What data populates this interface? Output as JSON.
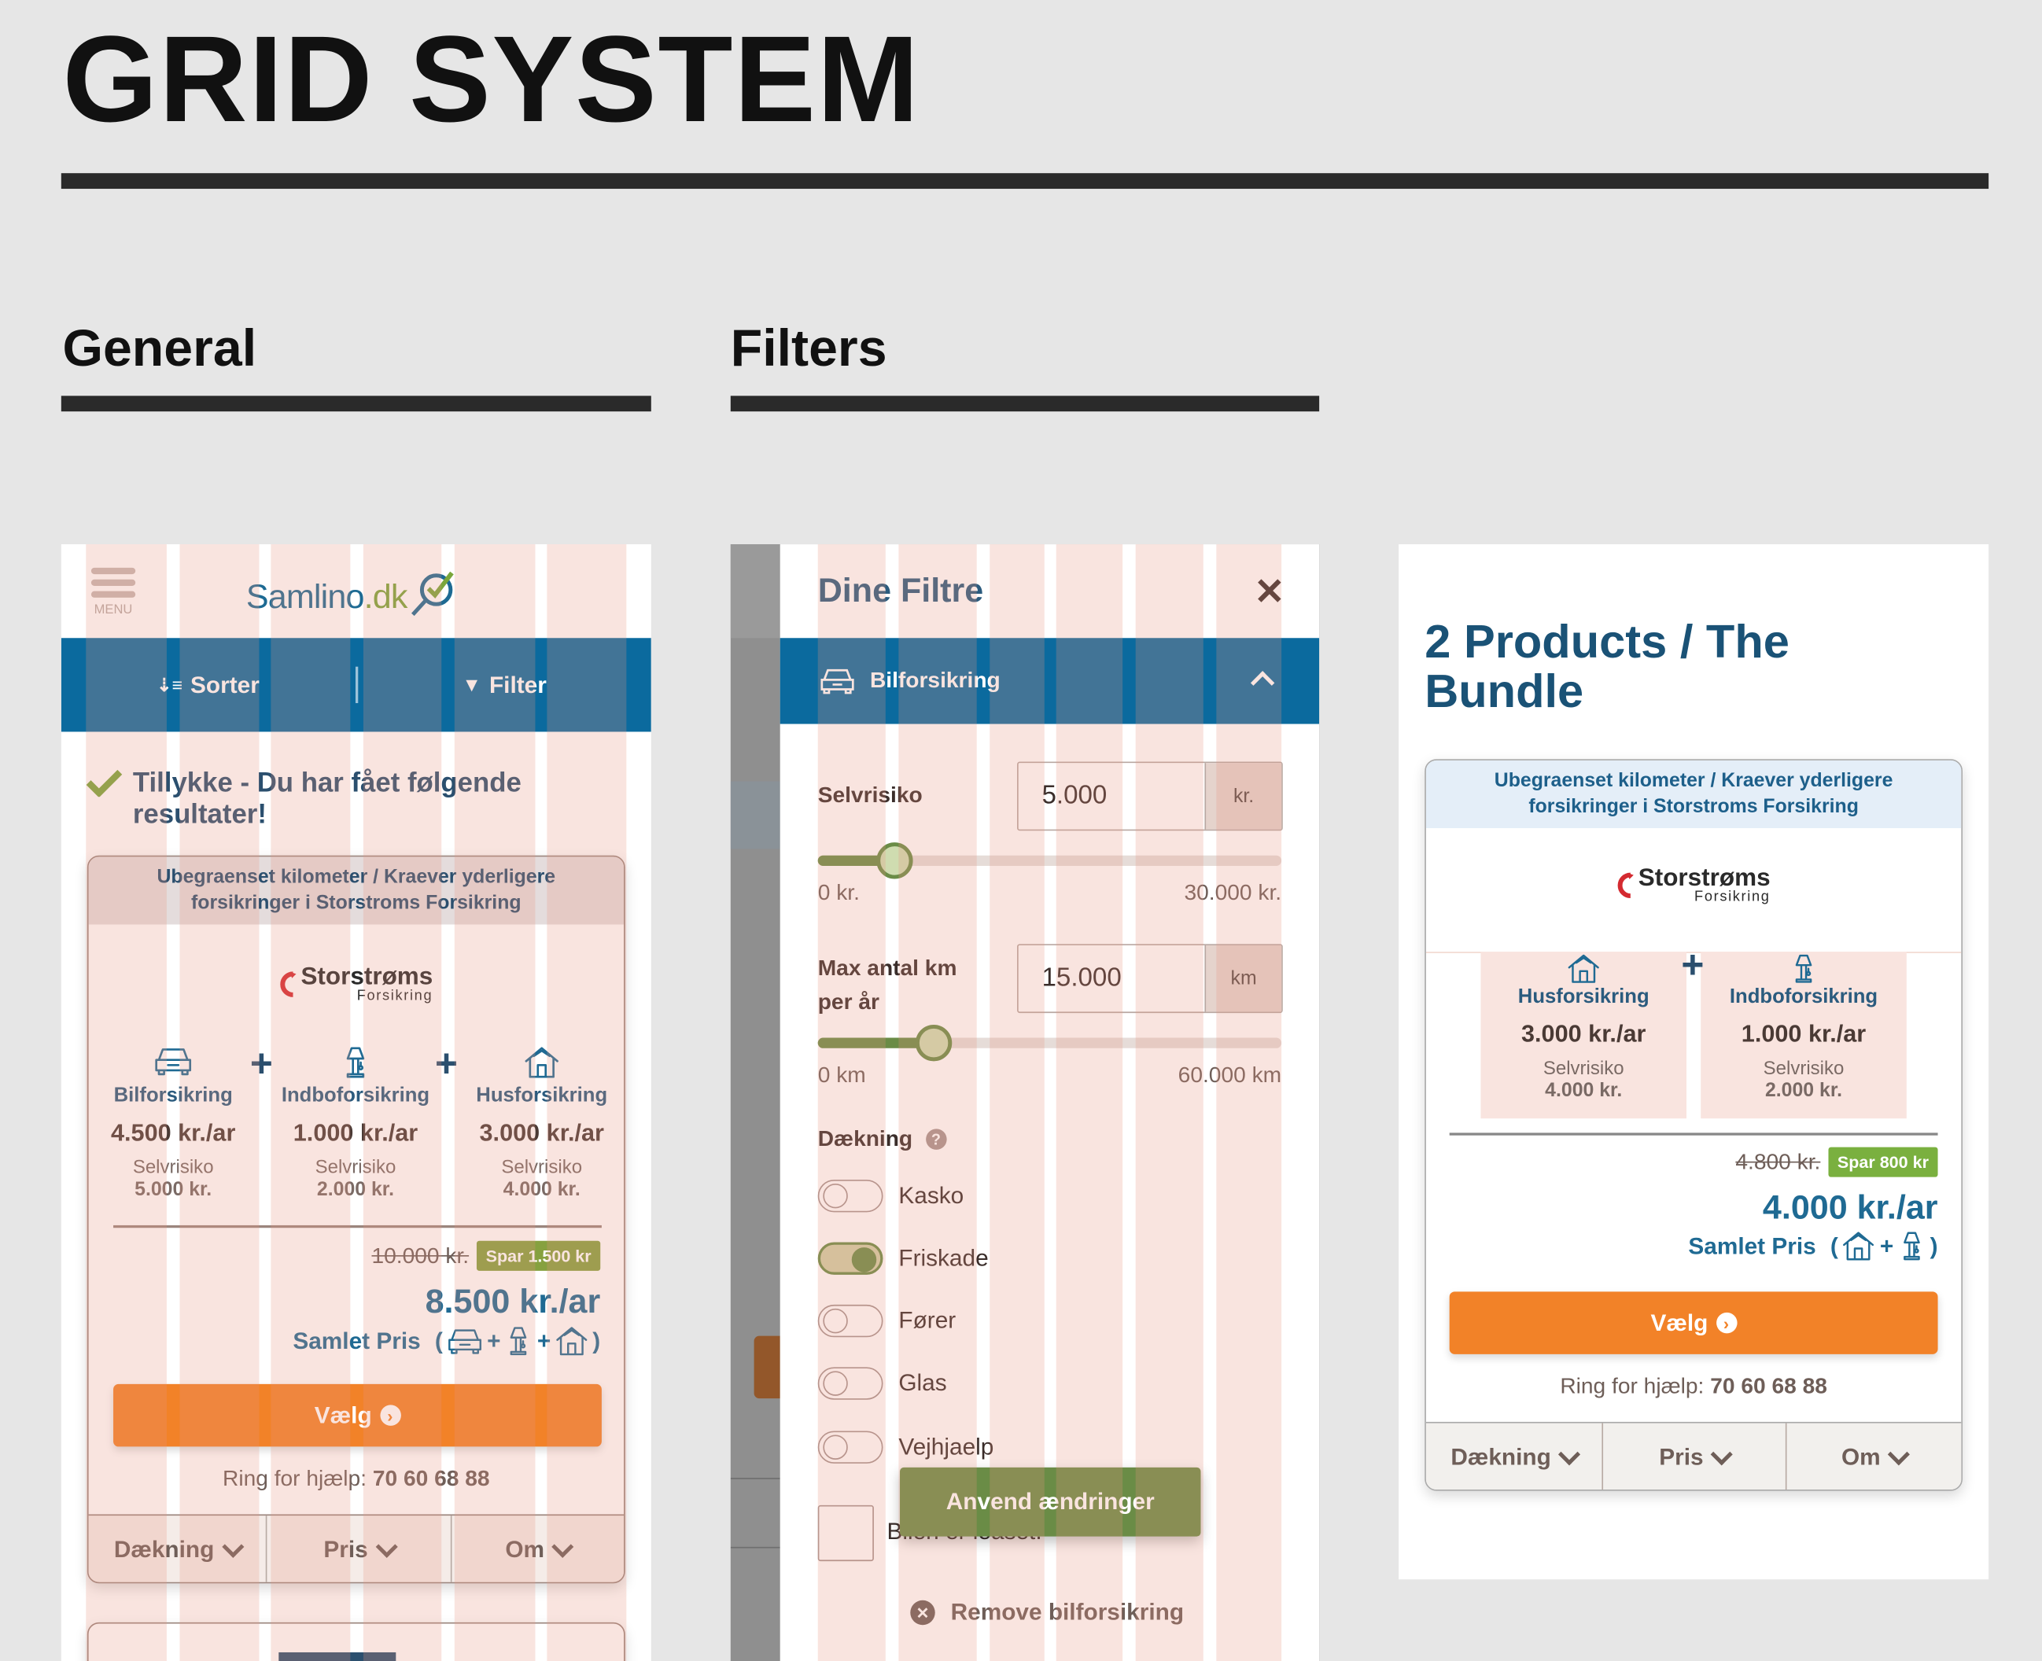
{
  "page": {
    "title": "GRID SYSTEM"
  },
  "sections": {
    "general": "General",
    "filters": "Filters"
  },
  "colors": {
    "brand_blue": "#0b6a9e",
    "accent_orange": "#f28228",
    "accent_green": "#6a8c46",
    "badge_green": "#86a13f",
    "grid_overlay": "#f9e4df"
  },
  "general": {
    "menu_label": "MENU",
    "logo": {
      "name": "Samlino",
      "tld": ".dk"
    },
    "toolbar": {
      "sort": "Sorter",
      "filter": "Filter"
    },
    "success_message": "Tillykke - Du har fået følgende resultater!",
    "card": {
      "header": "Ubegraenset kilometer / Kraever yderligere forsikringer i Storstroms Forsikring",
      "insurer": {
        "name": "Storstrøms",
        "sub": "Forsikring"
      },
      "products": [
        {
          "icon": "car-icon",
          "name": "Bilforsikring",
          "price": "4.500 kr./ar",
          "deductible_label": "Selvrisiko",
          "deductible": "5.000 kr."
        },
        {
          "icon": "lamp-icon",
          "name": "Indboforsikring",
          "price": "1.000 kr./ar",
          "deductible_label": "Selvrisiko",
          "deductible": "2.000 kr."
        },
        {
          "icon": "house-icon",
          "name": "Husforsikring",
          "price": "3.000 kr./ar",
          "deductible_label": "Selvrisiko",
          "deductible": "4.000 kr."
        }
      ],
      "old_price": "10.000 kr.",
      "savings": "Spar 1.500 kr",
      "total": "8.500 kr./ar",
      "total_label": "Samlet Pris",
      "choose": "Vælg",
      "help_label": "Ring for hjælp:",
      "help_phone": "70 60 68 88",
      "tabs": [
        "Dækning",
        "Pris",
        "Om"
      ]
    }
  },
  "filters": {
    "title": "Dine Filtre",
    "section": "Bilforsikring",
    "deductible": {
      "label": "Selvrisiko",
      "value": "5.000",
      "unit": "kr.",
      "min": "0 kr.",
      "max": "30.000 kr.",
      "slider_value": 5000,
      "slider_min": 0,
      "slider_max": 30000
    },
    "km": {
      "label": "Max antal km per år",
      "value": "15.000",
      "unit": "km",
      "min": "0 km",
      "max": "60.000 km",
      "slider_value": 15000,
      "slider_min": 0,
      "slider_max": 60000
    },
    "coverage_label": "Dækning",
    "coverage": [
      {
        "label": "Kasko",
        "on": false
      },
      {
        "label": "Friskade",
        "on": true
      },
      {
        "label": "Fører",
        "on": false
      },
      {
        "label": "Glas",
        "on": false
      },
      {
        "label": "Vejhjaelp",
        "on": false
      }
    ],
    "leased_label": "Bilen er leaset.",
    "apply": "Anvend ændringer",
    "remove": "Remove bilforsikring"
  },
  "bundle": {
    "heading": "2 Products / The Bundle",
    "card": {
      "header": "Ubegraenset kilometer / Kraever yderligere forsikringer i Storstroms Forsikring",
      "insurer": {
        "name": "Storstrøms",
        "sub": "Forsikring"
      },
      "products": [
        {
          "icon": "house-icon",
          "name": "Husforsikring",
          "price": "3.000 kr./ar",
          "deductible_label": "Selvrisiko",
          "deductible": "4.000 kr."
        },
        {
          "icon": "lamp-icon",
          "name": "Indboforsikring",
          "price": "1.000 kr./ar",
          "deductible_label": "Selvrisiko",
          "deductible": "2.000 kr."
        }
      ],
      "old_price": "4.800 kr.",
      "savings": "Spar 800 kr",
      "total": "4.000 kr./ar",
      "total_label": "Samlet Pris",
      "choose": "Vælg",
      "help_label": "Ring for hjælp:",
      "help_phone": "70 60 68 88",
      "tabs": [
        "Dækning",
        "Pris",
        "Om"
      ]
    }
  }
}
